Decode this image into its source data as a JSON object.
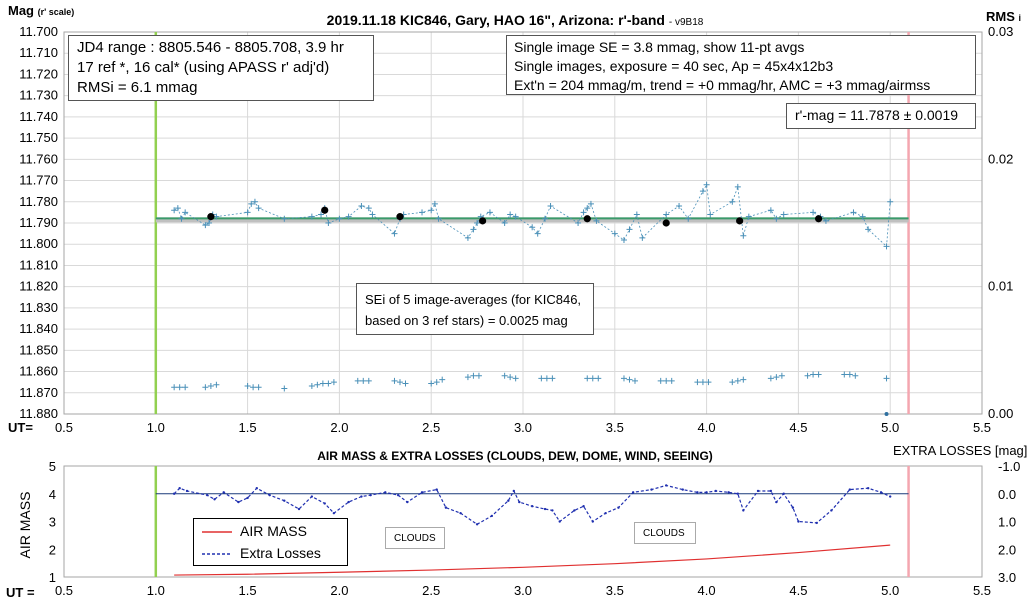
{
  "chart_data": [
    {
      "type": "scatter",
      "title": "2019.11.18 KIC846, Gary, HAO 16\", Arizona: r'-band",
      "version": "- v9B18",
      "ylabel": "Mag",
      "ylabel_note": "(r' scale)",
      "y2label": "RMS",
      "y2label_note": "i",
      "xlabel": "UT=",
      "xlim": [
        0.5,
        5.5
      ],
      "ylim": [
        11.88,
        11.7
      ],
      "y2lim": [
        0.0,
        0.03
      ],
      "xticks": [
        "0.5",
        "1.0",
        "1.5",
        "2.0",
        "2.5",
        "3.0",
        "3.5",
        "4.0",
        "4.5",
        "5.0",
        "5.5"
      ],
      "yticks": [
        "11.700",
        "11.710",
        "11.720",
        "11.730",
        "11.740",
        "11.750",
        "11.760",
        "11.770",
        "11.780",
        "11.790",
        "11.800",
        "11.810",
        "11.820",
        "11.830",
        "11.840",
        "11.850",
        "11.860",
        "11.870",
        "11.880"
      ],
      "y2ticks": [
        "0.03",
        "0.02",
        "0.01",
        "0.00"
      ],
      "grid": true,
      "annotations": {
        "info_left": [
          "JD4 range : 8805.546 - 8805.708,  3.9  hr",
          "17 ref *, 16 cal* (using APASS r' adj'd)",
          "RMSi = 6.1 mmag"
        ],
        "info_right": [
          "Single image SE = 3.8 mmag, show  11-pt avgs",
          "Single images, exposure = 40 sec, Ap = 45x4x12b3",
          "Ext'n = 204 mmag/m, trend =  +0 mmag/hr, AMC = +3 mmag/airmss"
        ],
        "result": "r'-mag = 11.7878 ± 0.0019",
        "sei": [
          "SEi of 5 image-averages (for KIC846,",
          "based on 3 ref stars) = 0.0025 mag"
        ]
      },
      "vlines": [
        {
          "x": 1.0,
          "color": "#92d050"
        },
        {
          "x": 5.1,
          "color": "#f4a6b0"
        }
      ],
      "fit_line": {
        "x": [
          1.0,
          5.1
        ],
        "y": 11.7878,
        "color": "#3a9a6a"
      },
      "band_line": {
        "x": [
          1.0,
          5.1
        ],
        "y": 11.7885,
        "color": "#c0c0c0"
      },
      "series": [
        {
          "marker": "plus",
          "color": "#4a90b8",
          "connect": true,
          "x": [
            1.1,
            1.12,
            1.14,
            1.16,
            1.27,
            1.29,
            1.31,
            1.33,
            1.5,
            1.52,
            1.54,
            1.56,
            1.7,
            1.85,
            1.9,
            1.92,
            1.94,
            2.0,
            2.05,
            2.12,
            2.16,
            2.18,
            2.3,
            2.33,
            2.35,
            2.45,
            2.5,
            2.52,
            2.54,
            2.7,
            2.73,
            2.75,
            2.77,
            2.82,
            2.9,
            2.93,
            2.96,
            3.05,
            3.08,
            3.12,
            3.15,
            3.3,
            3.33,
            3.35,
            3.37,
            3.4,
            3.5,
            3.55,
            3.58,
            3.62,
            3.65,
            3.78,
            3.85,
            3.9,
            3.98,
            4.0,
            4.02,
            4.14,
            4.17,
            4.2,
            4.23,
            4.35,
            4.38,
            4.42,
            4.58,
            4.62,
            4.65,
            4.8,
            4.85,
            4.88,
            4.98,
            5.0
          ],
          "y": [
            11.784,
            11.783,
            11.788,
            11.785,
            11.791,
            11.79,
            11.786,
            11.787,
            11.785,
            11.781,
            11.78,
            11.783,
            11.788,
            11.787,
            11.786,
            11.783,
            11.79,
            11.788,
            11.787,
            11.782,
            11.783,
            11.786,
            11.795,
            11.788,
            11.786,
            11.785,
            11.784,
            11.781,
            11.788,
            11.797,
            11.793,
            11.79,
            11.787,
            11.785,
            11.79,
            11.786,
            11.787,
            11.792,
            11.795,
            11.788,
            11.782,
            11.79,
            11.785,
            11.783,
            11.781,
            11.789,
            11.795,
            11.798,
            11.793,
            11.786,
            11.797,
            11.786,
            11.782,
            11.788,
            11.775,
            11.772,
            11.786,
            11.78,
            11.773,
            11.796,
            11.787,
            11.784,
            11.788,
            11.786,
            11.785,
            11.787,
            11.789,
            11.785,
            11.787,
            11.793,
            11.801,
            11.78
          ]
        },
        {
          "name": "",
          "marker": "dot",
          "color": "#000000",
          "x": [
            1.3,
            1.92,
            2.33,
            2.78,
            3.35,
            3.78,
            4.18,
            4.61
          ],
          "y": [
            11.787,
            11.784,
            11.787,
            11.789,
            11.788,
            11.79,
            11.789,
            11.788
          ]
        },
        {
          "marker": "plus",
          "color": "#4a90b8",
          "connect": false,
          "axis": "y2",
          "x": [
            1.1,
            1.13,
            1.16,
            1.27,
            1.3,
            1.33,
            1.5,
            1.53,
            1.56,
            1.7,
            1.85,
            1.88,
            1.91,
            1.94,
            1.97,
            2.1,
            2.13,
            2.16,
            2.3,
            2.33,
            2.36,
            2.5,
            2.53,
            2.56,
            2.7,
            2.73,
            2.76,
            2.9,
            2.93,
            2.96,
            3.1,
            3.13,
            3.16,
            3.35,
            3.38,
            3.41,
            3.55,
            3.58,
            3.61,
            3.75,
            3.78,
            3.81,
            3.95,
            3.98,
            4.01,
            4.14,
            4.17,
            4.2,
            4.35,
            4.38,
            4.41,
            4.55,
            4.58,
            4.61,
            4.75,
            4.78,
            4.81,
            4.98
          ],
          "y": [
            0.0021,
            0.0021,
            0.0021,
            0.0021,
            0.0022,
            0.0023,
            0.0022,
            0.0021,
            0.0021,
            0.002,
            0.0022,
            0.0023,
            0.0024,
            0.0024,
            0.0025,
            0.0026,
            0.0026,
            0.0026,
            0.0026,
            0.0025,
            0.0024,
            0.0024,
            0.0025,
            0.0027,
            0.0029,
            0.003,
            0.003,
            0.003,
            0.0029,
            0.0028,
            0.0028,
            0.0028,
            0.0028,
            0.0028,
            0.0028,
            0.0028,
            0.0028,
            0.0027,
            0.0026,
            0.0026,
            0.0026,
            0.0026,
            0.0025,
            0.0025,
            0.0025,
            0.0025,
            0.0026,
            0.0027,
            0.0028,
            0.0029,
            0.003,
            0.003,
            0.0031,
            0.0031,
            0.0031,
            0.0031,
            0.003,
            0.0028
          ]
        },
        {
          "marker": "dot",
          "color": "#2f70a0",
          "axis": "y2",
          "x": [
            4.98
          ],
          "y": [
            0.0
          ]
        }
      ]
    },
    {
      "type": "line",
      "title": "AIR MASS & EXTRA LOSSES (CLOUDS, DEW, DOME, WIND, SEEING)",
      "ylabel": "AIR MASS",
      "y2label": "EXTRA LOSSES [mag]",
      "xlabel": "UT =",
      "xlim": [
        0.5,
        5.5
      ],
      "ylim": [
        1,
        5
      ],
      "y2lim": [
        3.0,
        -1.0
      ],
      "xticks": [
        "0.5",
        "1.0",
        "1.5",
        "2.0",
        "2.5",
        "3.0",
        "3.5",
        "4.0",
        "4.5",
        "5.0",
        "5.5"
      ],
      "yticks": [
        "5",
        "4",
        "3",
        "2",
        "1"
      ],
      "y2ticks": [
        "-1.0",
        "0.0",
        "1.0",
        "2.0",
        "3.0"
      ],
      "grid": false,
      "legend_position": "bottom-left",
      "legend": [
        {
          "label": "AIR MASS",
          "color": "#e03030",
          "style": "solid"
        },
        {
          "label": "Extra Losses",
          "color": "#2030b0",
          "style": "dashed"
        }
      ],
      "annotations": [
        "CLOUDS",
        "CLOUDS"
      ],
      "vlines": [
        {
          "x": 1.0,
          "color": "#92d050"
        },
        {
          "x": 5.1,
          "color": "#f4a6b0"
        }
      ],
      "zero_line": {
        "y2": 0.0,
        "color": "#1a3a7a"
      },
      "series": [
        {
          "name": "AIR MASS",
          "color": "#e03030",
          "axis": "y",
          "x": [
            1.1,
            1.5,
            2.0,
            2.5,
            3.0,
            3.5,
            4.0,
            4.5,
            5.0
          ],
          "y": [
            1.07,
            1.1,
            1.17,
            1.25,
            1.35,
            1.48,
            1.65,
            1.88,
            2.15
          ]
        },
        {
          "name": "Extra Losses",
          "color": "#2030b0",
          "axis": "y2",
          "x": [
            1.1,
            1.13,
            1.17,
            1.28,
            1.32,
            1.37,
            1.45,
            1.5,
            1.55,
            1.62,
            1.7,
            1.78,
            1.85,
            1.92,
            1.97,
            2.05,
            2.12,
            2.17,
            2.25,
            2.32,
            2.37,
            2.45,
            2.53,
            2.58,
            2.66,
            2.75,
            2.83,
            2.92,
            2.95,
            2.98,
            3.05,
            3.12,
            3.16,
            3.2,
            3.28,
            3.33,
            3.38,
            3.45,
            3.52,
            3.6,
            3.7,
            3.78,
            3.87,
            3.95,
            4.0,
            4.05,
            4.12,
            4.17,
            4.2,
            4.28,
            4.35,
            4.38,
            4.42,
            4.47,
            4.5,
            4.6,
            4.68,
            4.78,
            4.88,
            4.95,
            5.0
          ],
          "y": [
            0.0,
            -0.2,
            -0.1,
            0.05,
            0.2,
            -0.05,
            0.3,
            0.15,
            -0.2,
            0.05,
            0.25,
            0.55,
            0.1,
            0.35,
            0.7,
            0.3,
            0.1,
            0.05,
            -0.05,
            0.05,
            0.3,
            -0.05,
            -0.15,
            0.5,
            0.7,
            1.1,
            0.8,
            0.25,
            -0.1,
            0.3,
            0.45,
            0.55,
            0.6,
            1.0,
            0.6,
            0.45,
            1.0,
            0.7,
            0.5,
            -0.05,
            -0.15,
            -0.3,
            -0.15,
            -0.05,
            -0.05,
            -0.1,
            -0.05,
            0.0,
            0.6,
            -0.1,
            -0.1,
            0.3,
            0.0,
            0.5,
            1.0,
            1.05,
            0.6,
            -0.15,
            -0.2,
            -0.05,
            0.1
          ]
        }
      ]
    }
  ]
}
